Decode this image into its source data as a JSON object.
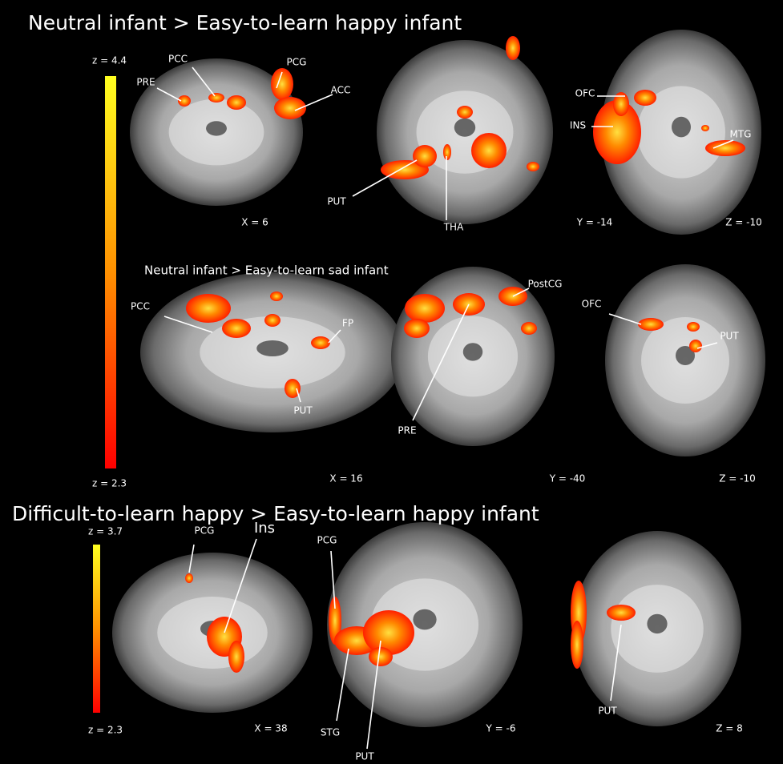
{
  "sections": [
    {
      "title": "Neutral infant > Easy-to-learn happy infant",
      "colorbar": {
        "max": "z = 4.4",
        "min": "z = 2.3"
      },
      "panels": [
        {
          "labels": [
            "PRE",
            "PCC",
            "PCG",
            "ACC"
          ],
          "coordinate": "X = 6"
        },
        {
          "labels": [
            "PUT",
            "THA"
          ],
          "coordinate": "Y = -14"
        },
        {
          "labels": [
            "OFC",
            "INS",
            "MTG"
          ],
          "coordinate": "Z = -10"
        }
      ]
    },
    {
      "title": "Neutral infant > Easy-to-learn sad infant",
      "panels": [
        {
          "labels": [
            "PCC",
            "FP",
            "PUT"
          ],
          "coordinate": "X = 16"
        },
        {
          "labels": [
            "PostCG",
            "PRE"
          ],
          "coordinate": "Y = -40"
        },
        {
          "labels": [
            "OFC",
            "PUT"
          ],
          "coordinate": "Z = -10"
        }
      ]
    },
    {
      "title": "Difficult-to-learn happy > Easy-to-learn happy infant",
      "colorbar": {
        "max": "z = 3.7",
        "min": "z = 2.3"
      },
      "panels": [
        {
          "labels": [
            "PCG",
            "Ins"
          ],
          "coordinate": "X = 38"
        },
        {
          "labels": [
            "PCG",
            "STG",
            "PUT"
          ],
          "coordinate": "Y = -6"
        },
        {
          "labels": [
            "PUT"
          ],
          "coordinate": "Z = 8"
        }
      ]
    }
  ]
}
